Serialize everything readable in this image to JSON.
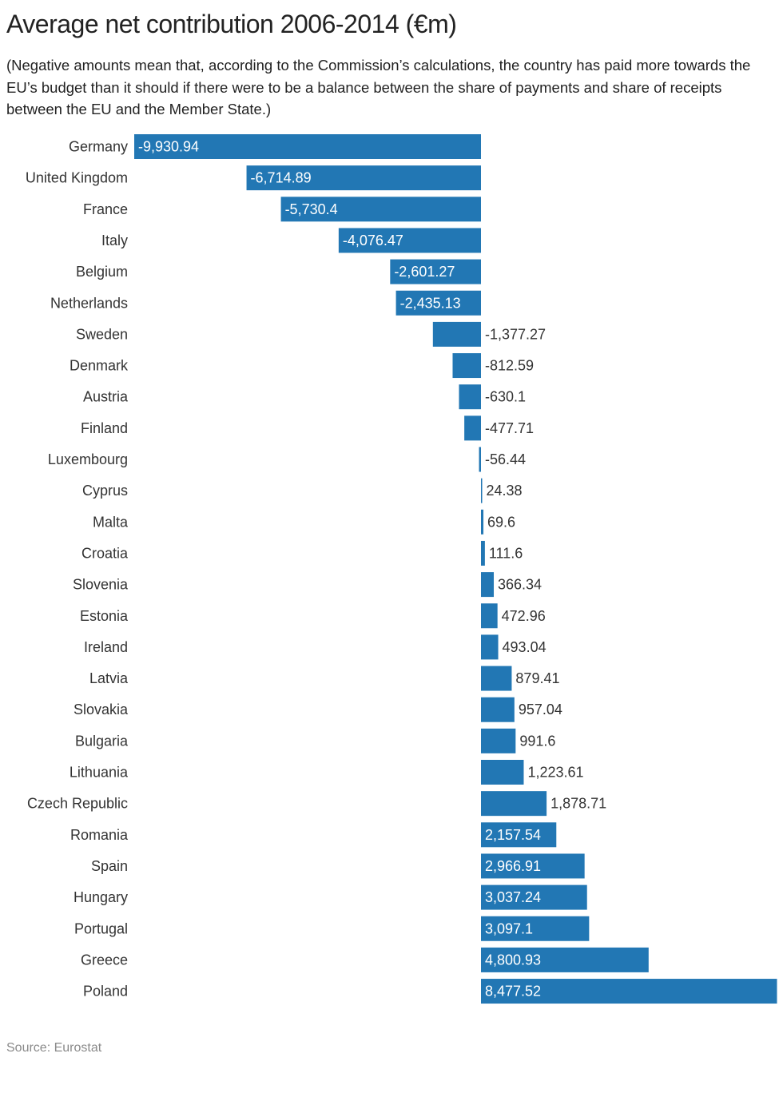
{
  "chart_data": {
    "type": "bar",
    "orientation": "horizontal",
    "title": "Average net contribution 2006-2014 (€m)",
    "subtitle": "(Negative amounts mean that, according to the Commission’s calculations, the country has paid more towards the EU’s budget than it should if there were to be a balance between the share of payments and share of receipts between the EU and the Member State.)",
    "xlabel": "",
    "ylabel": "",
    "grid": false,
    "categories": [
      "Germany",
      "United Kingdom",
      "France",
      "Italy",
      "Belgium",
      "Netherlands",
      "Sweden",
      "Denmark",
      "Austria",
      "Finland",
      "Luxembourg",
      "Cyprus",
      "Malta",
      "Croatia",
      "Slovenia",
      "Estonia",
      "Ireland",
      "Latvia",
      "Slovakia",
      "Bulgaria",
      "Lithuania",
      "Czech Republic",
      "Romania",
      "Spain",
      "Hungary",
      "Portugal",
      "Greece",
      "Poland"
    ],
    "values": [
      -9930.94,
      -6714.89,
      -5730.4,
      -4076.47,
      -2601.27,
      -2435.13,
      -1377.27,
      -812.59,
      -630.1,
      -477.71,
      -56.44,
      24.38,
      69.6,
      111.6,
      366.34,
      472.96,
      493.04,
      879.41,
      957.04,
      991.6,
      1223.61,
      1878.71,
      2157.54,
      2966.91,
      3037.24,
      3097.1,
      4800.93,
      8477.52
    ],
    "labels": [
      "-9,930.94",
      "-6,714.89",
      "-5,730.4",
      "-4,076.47",
      "-2,601.27",
      "-2,435.13",
      "-1,377.27",
      "-812.59",
      "-630.1",
      "-477.71",
      "-56.44",
      "24.38",
      "69.6",
      "111.6",
      "366.34",
      "472.96",
      "493.04",
      "879.41",
      "957.04",
      "991.6",
      "1,223.61",
      "1,878.71",
      "2,157.54",
      "2,966.91",
      "3,037.24",
      "3,097.1",
      "4,800.93",
      "8,477.52"
    ],
    "xlim": [
      -9930.94,
      8477.52
    ],
    "bar_color": "#2277b4",
    "source": "Source: Eurostat"
  }
}
